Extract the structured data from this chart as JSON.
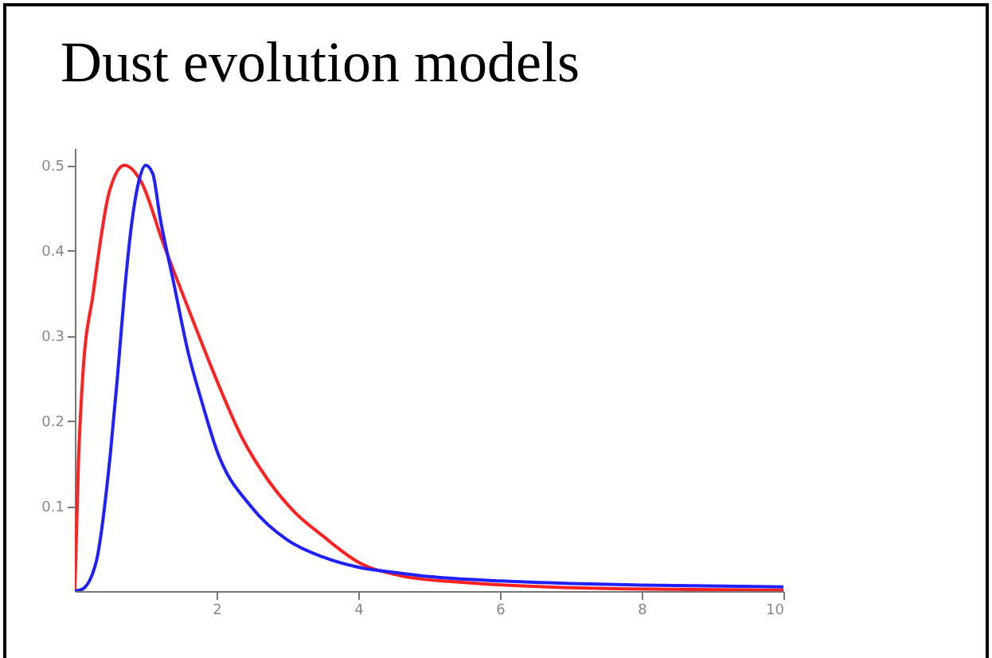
{
  "chart_data": {
    "type": "line",
    "title": "Dust evolution models",
    "xlim": [
      0,
      10
    ],
    "xticks": [
      2,
      4,
      6,
      8,
      10
    ],
    "ylim": [
      0,
      0.52
    ],
    "yticks": [
      0.1,
      0.2,
      0.3,
      0.4,
      0.5
    ],
    "grid": false,
    "marker": "none",
    "line_style": "solid",
    "series": [
      {
        "color": "#ff2020",
        "x": [
          0,
          0.05,
          0.11,
          0.26,
          0.49,
          0.7,
          0.94,
          1.24,
          1.61,
          1.99,
          2.36,
          2.73,
          3.11,
          3.48,
          4.0,
          4.6,
          5.5,
          7,
          8.5,
          10
        ],
        "values": [
          0,
          0.15,
          0.25,
          0.35,
          0.47,
          0.5,
          0.48,
          0.41,
          0.33,
          0.25,
          0.18,
          0.13,
          0.092,
          0.066,
          0.034,
          0.018,
          0.01,
          0.004,
          0.002,
          0.001
        ]
      },
      {
        "color": "#2020ff",
        "x": [
          0,
          0.1,
          0.3,
          0.5,
          0.6,
          0.7,
          0.8,
          0.9,
          1.0,
          1.1,
          1.2,
          1.4,
          1.6,
          1.8,
          2.0,
          2.5,
          3.0,
          3.5,
          4.0,
          4.5,
          5,
          6,
          7,
          8,
          10
        ],
        "values": [
          0,
          0.002,
          0.034,
          0.16,
          0.25,
          0.35,
          0.43,
          0.48,
          0.5,
          0.49,
          0.44,
          0.36,
          0.28,
          0.22,
          0.166,
          0.098,
          0.06,
          0.04,
          0.028,
          0.022,
          0.017,
          0.012,
          0.009,
          0.007,
          0.005
        ]
      }
    ]
  }
}
